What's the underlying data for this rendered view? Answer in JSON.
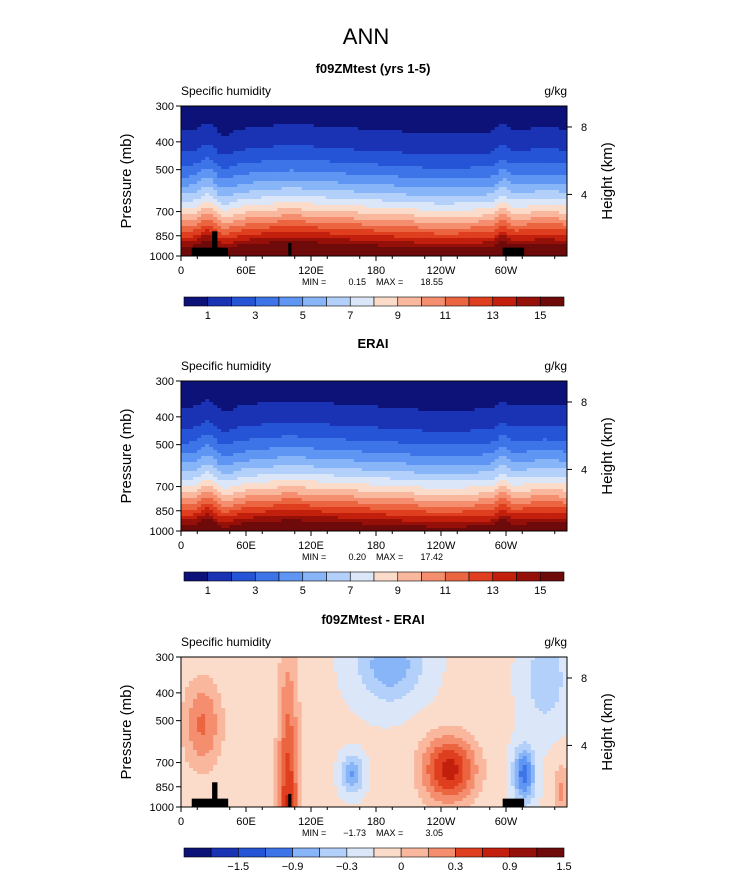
{
  "figure": {
    "main_title": "ANN"
  },
  "palettes": {
    "abs": [
      "#0d1278",
      "#1a32b4",
      "#2654d6",
      "#3d74e8",
      "#5f95f3",
      "#88b4f8",
      "#b3d0fb",
      "#dbe7f8",
      "#fbdccb",
      "#f9b79d",
      "#f48e6e",
      "#ec6541",
      "#df3f1e",
      "#c21f0d",
      "#96100a",
      "#6e0a0a"
    ],
    "diff": [
      "#0d1278",
      "#1a32b4",
      "#2654d6",
      "#3d74e8",
      "#5f95f3",
      "#88b4f8",
      "#b3d0fb",
      "#dbe7f8",
      "#fbdccb",
      "#f9b79d",
      "#f48e6e",
      "#ec6541",
      "#df3f1e",
      "#c21f0d",
      "#96100a",
      "#6e0a0a"
    ],
    "topography": "#000000"
  },
  "chart_data": [
    {
      "type": "heatmap",
      "title": "f09ZMtest (yrs 1-5)",
      "left_label": "Specific humidity",
      "right_label": "g/kg",
      "ylabel": "Pressure (mb)",
      "ylabel_right": "Height (km)",
      "yticks": [
        "300",
        "400",
        "500",
        "700",
        "850",
        "1000"
      ],
      "yticks_right": [
        "8",
        "4"
      ],
      "xticks": [
        "0",
        "60E",
        "120E",
        "180",
        "120W",
        "60W"
      ],
      "xlim": [
        0,
        360
      ],
      "ylim": [
        1000,
        300
      ],
      "stats": {
        "min_label": "MIN =",
        "min": "0.15",
        "max_label": "MAX =",
        "max": "18.55"
      },
      "colorbar": {
        "ticks": [
          "1",
          "3",
          "5",
          "7",
          "9",
          "11",
          "13",
          "15"
        ],
        "levels": [
          0,
          1,
          2,
          3,
          4,
          5,
          6,
          7,
          8,
          9,
          10,
          11,
          12,
          13,
          14,
          15,
          16
        ]
      }
    },
    {
      "type": "heatmap",
      "title": "ERAI",
      "left_label": "Specific humidity",
      "right_label": "g/kg",
      "ylabel": "Pressure (mb)",
      "ylabel_right": "Height (km)",
      "yticks": [
        "300",
        "400",
        "500",
        "700",
        "850",
        "1000"
      ],
      "yticks_right": [
        "8",
        "4"
      ],
      "xticks": [
        "0",
        "60E",
        "120E",
        "180",
        "120W",
        "60W"
      ],
      "xlim": [
        0,
        360
      ],
      "ylim": [
        1000,
        300
      ],
      "stats": {
        "min_label": "MIN =",
        "min": "0.20",
        "max_label": "MAX =",
        "max": "17.42"
      },
      "colorbar": {
        "ticks": [
          "1",
          "3",
          "5",
          "7",
          "9",
          "11",
          "13",
          "15"
        ],
        "levels": [
          0,
          1,
          2,
          3,
          4,
          5,
          6,
          7,
          8,
          9,
          10,
          11,
          12,
          13,
          14,
          15,
          16
        ]
      }
    },
    {
      "type": "heatmap",
      "title": "f09ZMtest - ERAI",
      "left_label": "Specific humidity",
      "right_label": "g/kg",
      "ylabel": "Pressure (mb)",
      "ylabel_right": "Height (km)",
      "yticks": [
        "300",
        "400",
        "500",
        "700",
        "850",
        "1000"
      ],
      "yticks_right": [
        "8",
        "4"
      ],
      "xticks": [
        "0",
        "60E",
        "120E",
        "180",
        "120W",
        "60W"
      ],
      "xlim": [
        0,
        360
      ],
      "ylim": [
        1000,
        300
      ],
      "stats": {
        "min_label": "MIN =",
        "min": "−1.73",
        "max_label": "MAX =",
        "max": "3.05"
      },
      "colorbar": {
        "ticks": [
          "−1.5",
          "−0.9",
          "−0.3",
          "0",
          "0.3",
          "0.9",
          "1.5"
        ],
        "levels": [
          -2.1,
          -1.8,
          -1.5,
          -1.2,
          -0.9,
          -0.6,
          -0.3,
          0,
          0.3,
          0.6,
          0.9,
          1.2,
          1.5,
          1.8,
          2.1
        ]
      }
    }
  ]
}
